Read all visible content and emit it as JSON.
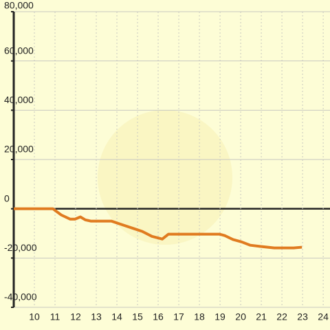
{
  "chart_data": {
    "type": "line",
    "x": [
      9,
      10.9,
      11.3,
      11.73,
      11.97,
      12.23,
      12.47,
      12.73,
      13.73,
      14.23,
      14.8,
      15.23,
      15.7,
      16.2,
      16.5,
      18.97,
      19.23,
      19.63,
      20.03,
      20.47,
      20.97,
      21.63,
      22.57,
      22.97
    ],
    "series": [
      {
        "color": "#e07b20",
        "values": [
          0,
          0,
          -2500,
          -4200,
          -4200,
          -3300,
          -4500,
          -5000,
          -5000,
          -6400,
          -8000,
          -9200,
          -11200,
          -12300,
          -10300,
          -10300,
          -10900,
          -12500,
          -13400,
          -14800,
          -15300,
          -15900,
          -15900,
          -15600
        ]
      }
    ],
    "xlim": [
      9,
      24.33
    ],
    "xticks": [
      10,
      11,
      12,
      13,
      14,
      15,
      16,
      17,
      18,
      19,
      20,
      21,
      22,
      23,
      24
    ],
    "ylim": [
      -40000,
      80000
    ],
    "yticks": [
      {
        "value": -40000,
        "label": "-40,000"
      },
      {
        "value": -20000,
        "label": "-20,000"
      },
      0,
      {
        "value": 20000,
        "label": "20,000"
      },
      {
        "value": 40000,
        "label": "40,000"
      },
      {
        "value": 60000,
        "label": "60,000"
      },
      {
        "value": 80000,
        "label": "80,000"
      }
    ],
    "grid": true
  }
}
